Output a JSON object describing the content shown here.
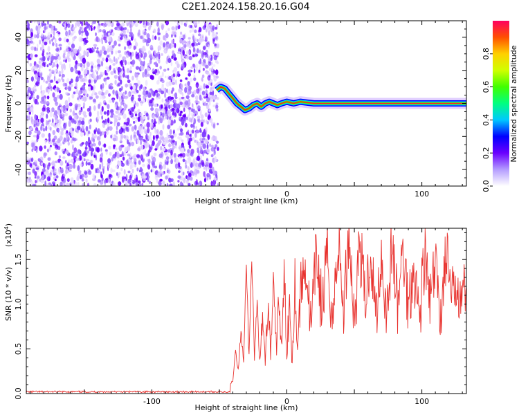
{
  "chart_data": [
    {
      "type": "heatmap",
      "title": "C2E1.2024.158.20.16.G04",
      "xlabel": "Height of straight line (km)",
      "ylabel": "Frequency (Hz)",
      "xlim": [
        -193,
        133
      ],
      "ylim": [
        -50,
        50
      ],
      "xticks": [
        -100,
        0,
        100
      ],
      "yticks": [
        -40,
        -20,
        0,
        20,
        40
      ],
      "noise_region_x": [
        -193,
        -51
      ],
      "signal_track": {
        "x": [
          -52,
          -49,
          -46,
          -43,
          -40,
          -37,
          -34,
          -31,
          -28,
          -25,
          -22,
          -19,
          -16,
          -13,
          -10,
          -7,
          -4,
          0,
          5,
          10,
          20,
          40,
          70,
          100,
          133
        ],
        "y": [
          8,
          10,
          9,
          6,
          3,
          0,
          -2,
          -4,
          -3,
          -1,
          0,
          -2,
          0,
          1,
          0,
          -1,
          0,
          1,
          0,
          1,
          0,
          0,
          0,
          0,
          0
        ]
      },
      "colorbar": {
        "label": "Normalized spectral amplitude",
        "range": [
          0,
          1
        ],
        "ticks": [
          "0.0",
          "0.2",
          "0.4",
          "0.6",
          "0.8"
        ],
        "colors": [
          "#ffffff",
          "#b49cff",
          "#6a00ff",
          "#0000ff",
          "#00c8ff",
          "#00ff80",
          "#40ff00",
          "#d0ff00",
          "#ffd000",
          "#ff5000",
          "#ff0060"
        ]
      },
      "grid": false
    },
    {
      "type": "line",
      "title": "",
      "xlabel": "Height of straight line (km)",
      "ylabel": "SNR (10 * v/v)",
      "y_multiplier": "(x10",
      "y_multiplier_exp": "4",
      "y_multiplier_close": ")",
      "xlim": [
        -193,
        133
      ],
      "ylim": [
        0,
        1.85
      ],
      "xticks": [
        -100,
        0,
        100
      ],
      "yticks": [
        "0.0",
        "0.5",
        "1.0",
        "1.5"
      ],
      "ytick_values": [
        0,
        0.5,
        1.0,
        1.5
      ],
      "series": [
        {
          "color": "#e8322e",
          "x": [
            -193,
            -180,
            -160,
            -140,
            -120,
            -100,
            -80,
            -60,
            -45,
            -40,
            -38,
            -36,
            -34,
            -32,
            -30,
            -28,
            -26,
            -24,
            -22,
            -20,
            -18,
            -16,
            -14,
            -12,
            -10,
            -8,
            -6,
            -4,
            -2,
            0,
            2,
            4,
            6,
            8,
            10,
            14,
            18,
            22,
            26,
            30,
            34,
            38,
            42,
            46,
            50,
            54,
            58,
            62,
            66,
            70,
            74,
            78,
            82,
            86,
            90,
            94,
            98,
            102,
            106,
            110,
            114,
            118,
            122,
            126,
            130,
            133
          ],
          "y": [
            0.02,
            0.02,
            0.02,
            0.02,
            0.02,
            0.02,
            0.02,
            0.02,
            0.03,
            0.15,
            0.5,
            0.25,
            0.7,
            0.35,
            1.45,
            0.4,
            1.55,
            0.35,
            1.0,
            0.3,
            0.9,
            0.4,
            1.0,
            0.45,
            1.2,
            0.5,
            1.1,
            0.4,
            1.3,
            0.55,
            1.0,
            0.45,
            1.3,
            0.5,
            1.15,
            1.45,
            0.7,
            1.6,
            0.9,
            1.55,
            0.8,
            1.75,
            0.9,
            1.85,
            0.8,
            1.7,
            1.0,
            1.6,
            0.85,
            1.55,
            0.9,
            1.7,
            0.95,
            1.6,
            1.0,
            1.45,
            0.85,
            1.55,
            1.0,
            1.4,
            0.9,
            1.6,
            1.0,
            1.3,
            1.1,
            1.2
          ]
        }
      ],
      "grid": false
    }
  ]
}
